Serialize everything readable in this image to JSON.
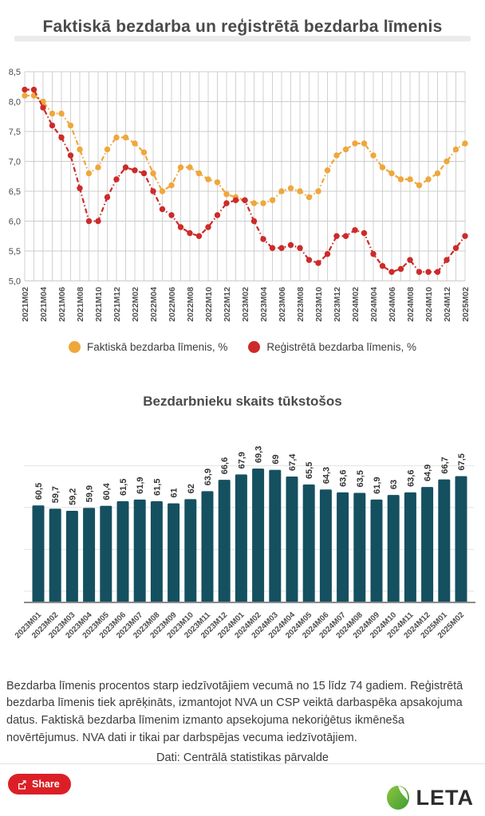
{
  "page_title": "Faktiskā bezdarba un reģistrētā bezdarba līmenis",
  "colors": {
    "actual_series": "#efa73c",
    "registered_series": "#cc2b29",
    "bar_fill": "#155060",
    "share_button": "#dc1f26",
    "leta_green_light": "#8dc63f",
    "leta_green_dark": "#3f9c35",
    "grid": "#cccccc",
    "text_dark": "#4a4a4a"
  },
  "legend": {
    "items": [
      {
        "label": "Faktiskā bezdarba līmenis, %",
        "color": "#efa73c"
      },
      {
        "label": "Reģistrētā bezdarba līmenis, %",
        "color": "#cc2b29"
      }
    ]
  },
  "chart_data": [
    {
      "type": "line",
      "title": "Faktiskā bezdarba un reģistrētā bezdarba līmenis",
      "x": [
        "2021M02",
        "2021M03",
        "2021M04",
        "2021M05",
        "2021M06",
        "2021M07",
        "2021M08",
        "2021M09",
        "2021M10",
        "2021M11",
        "2021M12",
        "2022M01",
        "2022M02",
        "2022M03",
        "2022M04",
        "2022M05",
        "2022M06",
        "2022M07",
        "2022M08",
        "2022M09",
        "2022M10",
        "2022M11",
        "2022M12",
        "2023M01",
        "2023M02",
        "2023M03",
        "2023M04",
        "2023M05",
        "2023M06",
        "2023M07",
        "2023M08",
        "2023M09",
        "2023M10",
        "2023M11",
        "2023M12",
        "2024M01",
        "2024M02",
        "2024M03",
        "2024M04",
        "2024M05",
        "2024M06",
        "2024M07",
        "2024M08",
        "2024M09",
        "2024M10",
        "2024M11",
        "2024M12",
        "2025M01",
        "2025M02"
      ],
      "x_tick_labels": [
        "2021M02",
        "2021M04",
        "2021M06",
        "2021M08",
        "2021M10",
        "2021M12",
        "2022M02",
        "2022M04",
        "2022M06",
        "2022M08",
        "2022M10",
        "2022M12",
        "2023M02",
        "2023M04",
        "2023M06",
        "2023M08",
        "2023M10",
        "2023M12",
        "2024M02",
        "2024M04",
        "2024M06",
        "2024M08",
        "2024M10",
        "2024M12",
        "2025M02"
      ],
      "series": [
        {
          "name": "Faktiskā bezdarba līmenis, %",
          "color": "#efa73c",
          "values": [
            8.1,
            8.1,
            8.0,
            7.8,
            7.8,
            7.6,
            7.2,
            6.8,
            6.9,
            7.2,
            7.4,
            7.4,
            7.3,
            7.15,
            6.8,
            6.5,
            6.6,
            6.9,
            6.9,
            6.8,
            6.7,
            6.65,
            6.45,
            6.4,
            6.35,
            6.3,
            6.3,
            6.35,
            6.5,
            6.55,
            6.5,
            6.4,
            6.5,
            6.85,
            7.1,
            7.2,
            7.3,
            7.3,
            7.1,
            6.9,
            6.8,
            6.7,
            6.7,
            6.6,
            6.7,
            6.8,
            7.0,
            7.2,
            7.3
          ]
        },
        {
          "name": "Reģistrētā bezdarba līmenis, %",
          "color": "#cc2b29",
          "values": [
            8.2,
            8.2,
            7.9,
            7.6,
            7.4,
            7.1,
            6.55,
            6.0,
            6.0,
            6.4,
            6.7,
            6.9,
            6.85,
            6.8,
            6.5,
            6.2,
            6.1,
            5.9,
            5.8,
            5.75,
            5.9,
            6.1,
            6.3,
            6.35,
            6.35,
            6.0,
            5.7,
            5.55,
            5.55,
            5.6,
            5.55,
            5.35,
            5.3,
            5.45,
            5.75,
            5.75,
            5.85,
            5.8,
            5.45,
            5.25,
            5.15,
            5.2,
            5.35,
            5.15,
            5.15,
            5.15,
            5.35,
            5.55,
            5.75
          ]
        }
      ],
      "ylim": [
        5.0,
        8.5
      ],
      "ytick_labels": [
        "8,5",
        "8,0",
        "7,5",
        "7,0",
        "6,5",
        "6,0",
        "5,5",
        "5,0"
      ],
      "grid": "on",
      "legend_position": "bottom"
    },
    {
      "type": "bar",
      "title": "Bezdarbnieku skaits tūkstošos",
      "categories": [
        "2023M01",
        "2023M02",
        "2023M03",
        "2023M04",
        "2023M05",
        "2023M06",
        "2023M07",
        "2023M08",
        "2023M09",
        "2023M10",
        "2023M11",
        "2023M12",
        "2024M01",
        "2024M02",
        "2024M03",
        "2024M04",
        "2024M05",
        "2024M06",
        "2024M07",
        "2024M08",
        "2024M09",
        "2024M10",
        "2024M11",
        "2024M12",
        "2025M01",
        "2025M02"
      ],
      "values": [
        60.5,
        59.7,
        59.2,
        59.9,
        60.4,
        61.5,
        61.9,
        61.5,
        61,
        62,
        63.9,
        66.6,
        67.9,
        69.3,
        69,
        67.4,
        65.5,
        64.3,
        63.6,
        63.5,
        61.9,
        63,
        63.6,
        64.9,
        66.7,
        67.5
      ],
      "value_labels": [
        "60,5",
        "59,7",
        "59,2",
        "59,9",
        "60,4",
        "61,5",
        "61,9",
        "61,5",
        "61",
        "62",
        "63,9",
        "66,6",
        "67,9",
        "69,3",
        "69",
        "67,4",
        "65,5",
        "64,3",
        "63,6",
        "63,5",
        "61,9",
        "63",
        "63,6",
        "64,9",
        "66,7",
        "67,5"
      ],
      "bar_color": "#155060",
      "grid": "on",
      "xlabel": "",
      "ylabel": ""
    }
  ],
  "bar_section_title": "Bezdarbnieku skaits tūkstošos",
  "footnote_text": "Bezdarba līmenis procentos starp iedzīvotājiem vecumā no 15 līdz 74 gadiem.  Reģistrētā bezdarba līmenis tiek aprēķināts, izmantojot NVA un CSP veiktā darbaspēka apsakojuma datus. Faktiskā bezdarba līmenim izmanto apsekojuma nekoriģētus ikmēneša novērtējumus. NVA dati ir tikai par darbspējas vecuma iedzīvotājiem.",
  "source_text": "Dati: Centrālā statistikas pārvalde",
  "share": {
    "label": "Share"
  },
  "logo": {
    "text": "LETA"
  }
}
